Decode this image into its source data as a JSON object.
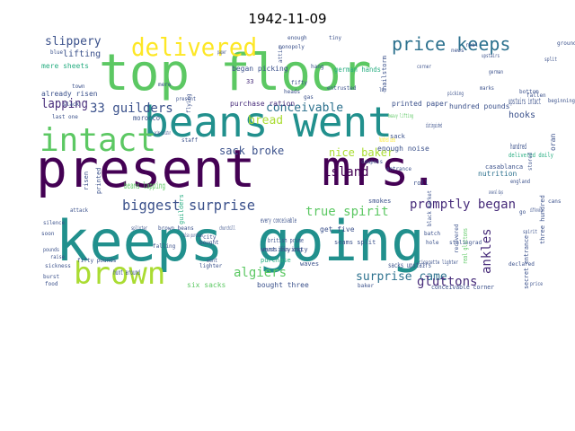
{
  "title": "1942-11-09",
  "palette": {
    "dark_purple": "#440154",
    "deep_purple": "#472c7a",
    "indigo": "#3b518b",
    "blue": "#2c718e",
    "teal": "#21908d",
    "green": "#27ad81",
    "bright_green": "#5cc863",
    "lime": "#aadc32",
    "yellow": "#fde725"
  },
  "words": [
    {
      "text": "top floor",
      "color": "#5cc863"
    },
    {
      "text": "beans went",
      "color": "#21908d"
    },
    {
      "text": "present",
      "color": "#440154"
    },
    {
      "text": "mrs.",
      "color": "#440154"
    },
    {
      "text": "keeps going",
      "color": "#21908d"
    },
    {
      "text": "intact",
      "color": "#5cc863"
    },
    {
      "text": "brown",
      "color": "#aadc32"
    },
    {
      "text": "delivered",
      "color": "#fde725"
    },
    {
      "text": "price keeps",
      "color": "#2c718e"
    },
    {
      "text": "lapping",
      "color": "#472c7a"
    },
    {
      "text": "slippery",
      "color": "#3b518b"
    },
    {
      "text": "33 guilders",
      "color": "#3b518b"
    },
    {
      "text": "biggest surprise",
      "color": "#3b518b"
    },
    {
      "text": "true spirit",
      "color": "#5cc863"
    },
    {
      "text": "promptly began",
      "color": "#472c7a"
    },
    {
      "text": "surprise came",
      "color": "#2c718e"
    },
    {
      "text": "gluttons",
      "color": "#472c7a"
    },
    {
      "text": "island",
      "color": "#440154"
    },
    {
      "text": "algiers",
      "color": "#5cc863"
    },
    {
      "text": "ankles",
      "color": "#472c7a"
    },
    {
      "text": "conceivable",
      "color": "#2c718e"
    },
    {
      "text": "bread",
      "color": "#aadc32"
    },
    {
      "text": "sack broke",
      "color": "#3b518b"
    },
    {
      "text": "nice baker",
      "color": "#aadc32"
    },
    {
      "text": "lifting",
      "color": "#3b518b"
    },
    {
      "text": "mere sheets",
      "color": "#27ad81"
    },
    {
      "text": "already risen",
      "color": "#3b518b"
    },
    {
      "text": "began picking",
      "color": "#3b518b"
    },
    {
      "text": "german hands",
      "color": "#27ad81"
    },
    {
      "text": "hailstorm",
      "color": "#3b518b"
    },
    {
      "text": "upstairs intact",
      "color": "#3b518b"
    },
    {
      "text": "hooks",
      "color": "#3b518b"
    },
    {
      "text": "oran",
      "color": "#3b518b"
    },
    {
      "text": "purchase ration",
      "color": "#472c7a"
    },
    {
      "text": "printed paper",
      "color": "#3b518b"
    },
    {
      "text": "hundred pounds",
      "color": "#3b518b"
    },
    {
      "text": "enough noise",
      "color": "#3b518b"
    },
    {
      "text": "delivered daily",
      "color": "#27ad81"
    },
    {
      "text": "nutrition",
      "color": "#2c718e"
    },
    {
      "text": "casablanca",
      "color": "#3b518b"
    },
    {
      "text": "three hundred",
      "color": "#3b518b"
    },
    {
      "text": "beans lapping",
      "color": "#5cc863"
    },
    {
      "text": "morocco",
      "color": "#3b518b"
    },
    {
      "text": "risen",
      "color": "#3b518b"
    },
    {
      "text": "printed",
      "color": "#3b518b"
    },
    {
      "text": "guilders",
      "color": "#27ad81"
    },
    {
      "text": "every conceivable",
      "color": "#3b518b"
    },
    {
      "text": "get five",
      "color": "#3b518b"
    },
    {
      "text": "seams split",
      "color": "#3b518b"
    },
    {
      "text": "went flying",
      "color": "#3b518b"
    },
    {
      "text": "british prime",
      "color": "#3b518b"
    },
    {
      "text": "purchase",
      "color": "#27ad81"
    },
    {
      "text": "russian city",
      "color": "#3b518b"
    },
    {
      "text": "sacks upstairs",
      "color": "#3b518b"
    },
    {
      "text": "six sacks",
      "color": "#5cc863"
    },
    {
      "text": "bought three",
      "color": "#3b518b"
    },
    {
      "text": "conceivable corner",
      "color": "#3b518b"
    },
    {
      "text": "secret entrance",
      "color": "#3b518b"
    },
    {
      "text": "real gluttons",
      "color": "#5cc863"
    },
    {
      "text": "hunt around",
      "color": "#3b518b"
    },
    {
      "text": "waves",
      "color": "#3b518b"
    },
    {
      "text": "smokes",
      "color": "#3b518b"
    },
    {
      "text": "hundred cans",
      "color": "#fde725"
    },
    {
      "text": "roll",
      "color": "#3b518b"
    },
    {
      "text": "hundred",
      "color": "#3b518b"
    },
    {
      "text": "33",
      "color": "#472c7a"
    },
    {
      "text": "distinguished",
      "color": "#3b518b"
    },
    {
      "text": "sack",
      "color": "#3b518b"
    },
    {
      "text": "enough",
      "color": "#3b518b"
    },
    {
      "text": "monopoly",
      "color": "#3b518b"
    },
    {
      "text": "entrusted",
      "color": "#3b518b"
    },
    {
      "text": "heavy lifting",
      "color": "#5cc863"
    },
    {
      "text": "picking",
      "color": "#3b518b"
    },
    {
      "text": "heads",
      "color": "#3b518b"
    },
    {
      "text": "fallen",
      "color": "#3b518b"
    },
    {
      "text": "cigarette lighter",
      "color": "#3b518b"
    },
    {
      "text": "stalingrad",
      "color": "#3b518b"
    },
    {
      "text": "black market",
      "color": "#3b518b"
    },
    {
      "text": "churchill",
      "color": "#3b518b"
    },
    {
      "text": "hole",
      "color": "#3b518b"
    },
    {
      "text": "beginning",
      "color": "#3b518b"
    },
    {
      "text": "lighter",
      "color": "#3b518b"
    },
    {
      "text": "fifty pounds",
      "color": "#3b518b"
    },
    {
      "text": "brown beans",
      "color": "#3b518b"
    },
    {
      "text": "prime minister",
      "color": "#3b518b"
    },
    {
      "text": "staff",
      "color": "#3b518b"
    },
    {
      "text": "silence",
      "color": "#3b518b"
    },
    {
      "text": "attack",
      "color": "#3b518b"
    },
    {
      "text": "raise",
      "color": "#3b518b"
    },
    {
      "text": "food",
      "color": "#3b518b"
    },
    {
      "text": "present",
      "color": "#3b518b"
    },
    {
      "text": "batch",
      "color": "#3b518b"
    },
    {
      "text": "declared",
      "color": "#3b518b"
    },
    {
      "text": "recovered",
      "color": "#3b518b"
    },
    {
      "text": "several days",
      "color": "#3b518b"
    },
    {
      "text": "town",
      "color": "#3b518b"
    },
    {
      "text": "slack",
      "color": "#3b518b"
    },
    {
      "text": "last one",
      "color": "#3b518b"
    },
    {
      "text": "also purchase",
      "color": "#3b518b"
    },
    {
      "text": "baker",
      "color": "#3b518b"
    },
    {
      "text": "bought",
      "color": "#3b518b"
    },
    {
      "text": "falling",
      "color": "#3b518b"
    },
    {
      "text": "sickness",
      "color": "#3b518b"
    },
    {
      "text": "splinter",
      "color": "#3b518b"
    },
    {
      "text": "soon",
      "color": "#3b518b"
    },
    {
      "text": "pounds",
      "color": "#3b518b"
    },
    {
      "text": "burst",
      "color": "#3b518b"
    },
    {
      "text": "bottom",
      "color": "#3b518b"
    },
    {
      "text": "england",
      "color": "#3b518b"
    },
    {
      "text": "stored",
      "color": "#3b518b"
    },
    {
      "text": "split",
      "color": "#3b518b"
    },
    {
      "text": "tiny",
      "color": "#3b518b"
    },
    {
      "text": "real",
      "color": "#3b518b"
    },
    {
      "text": "blue",
      "color": "#3b518b"
    },
    {
      "text": "mere",
      "color": "#3b518b"
    },
    {
      "text": "marks",
      "color": "#3b518b"
    },
    {
      "text": "news",
      "color": "#3b518b"
    },
    {
      "text": "entrance",
      "color": "#3b518b"
    },
    {
      "text": "coupons",
      "color": "#3b518b"
    },
    {
      "text": "corner",
      "color": "#3b518b"
    },
    {
      "text": "fifty",
      "color": "#3b518b"
    },
    {
      "text": "paper",
      "color": "#3b518b"
    },
    {
      "text": "gas",
      "color": "#3b518b"
    },
    {
      "text": "city",
      "color": "#3b518b"
    },
    {
      "text": "hang",
      "color": "#3b518b"
    },
    {
      "text": "spirit",
      "color": "#3b518b"
    },
    {
      "text": "went",
      "color": "#3b518b"
    },
    {
      "text": "lap",
      "color": "#3b518b"
    },
    {
      "text": "go",
      "color": "#3b518b"
    },
    {
      "text": "cans",
      "color": "#3b518b"
    },
    {
      "text": "flying",
      "color": "#3b518b"
    },
    {
      "text": "difference",
      "color": "#3b518b"
    },
    {
      "text": "attic",
      "color": "#3b518b"
    },
    {
      "text": "upstairs",
      "color": "#3b518b"
    },
    {
      "text": "ground",
      "color": "#3b518b"
    },
    {
      "text": "german",
      "color": "#3b518b"
    },
    {
      "text": "price",
      "color": "#3b518b"
    },
    {
      "text": "cook",
      "color": "#3b518b"
    }
  ]
}
